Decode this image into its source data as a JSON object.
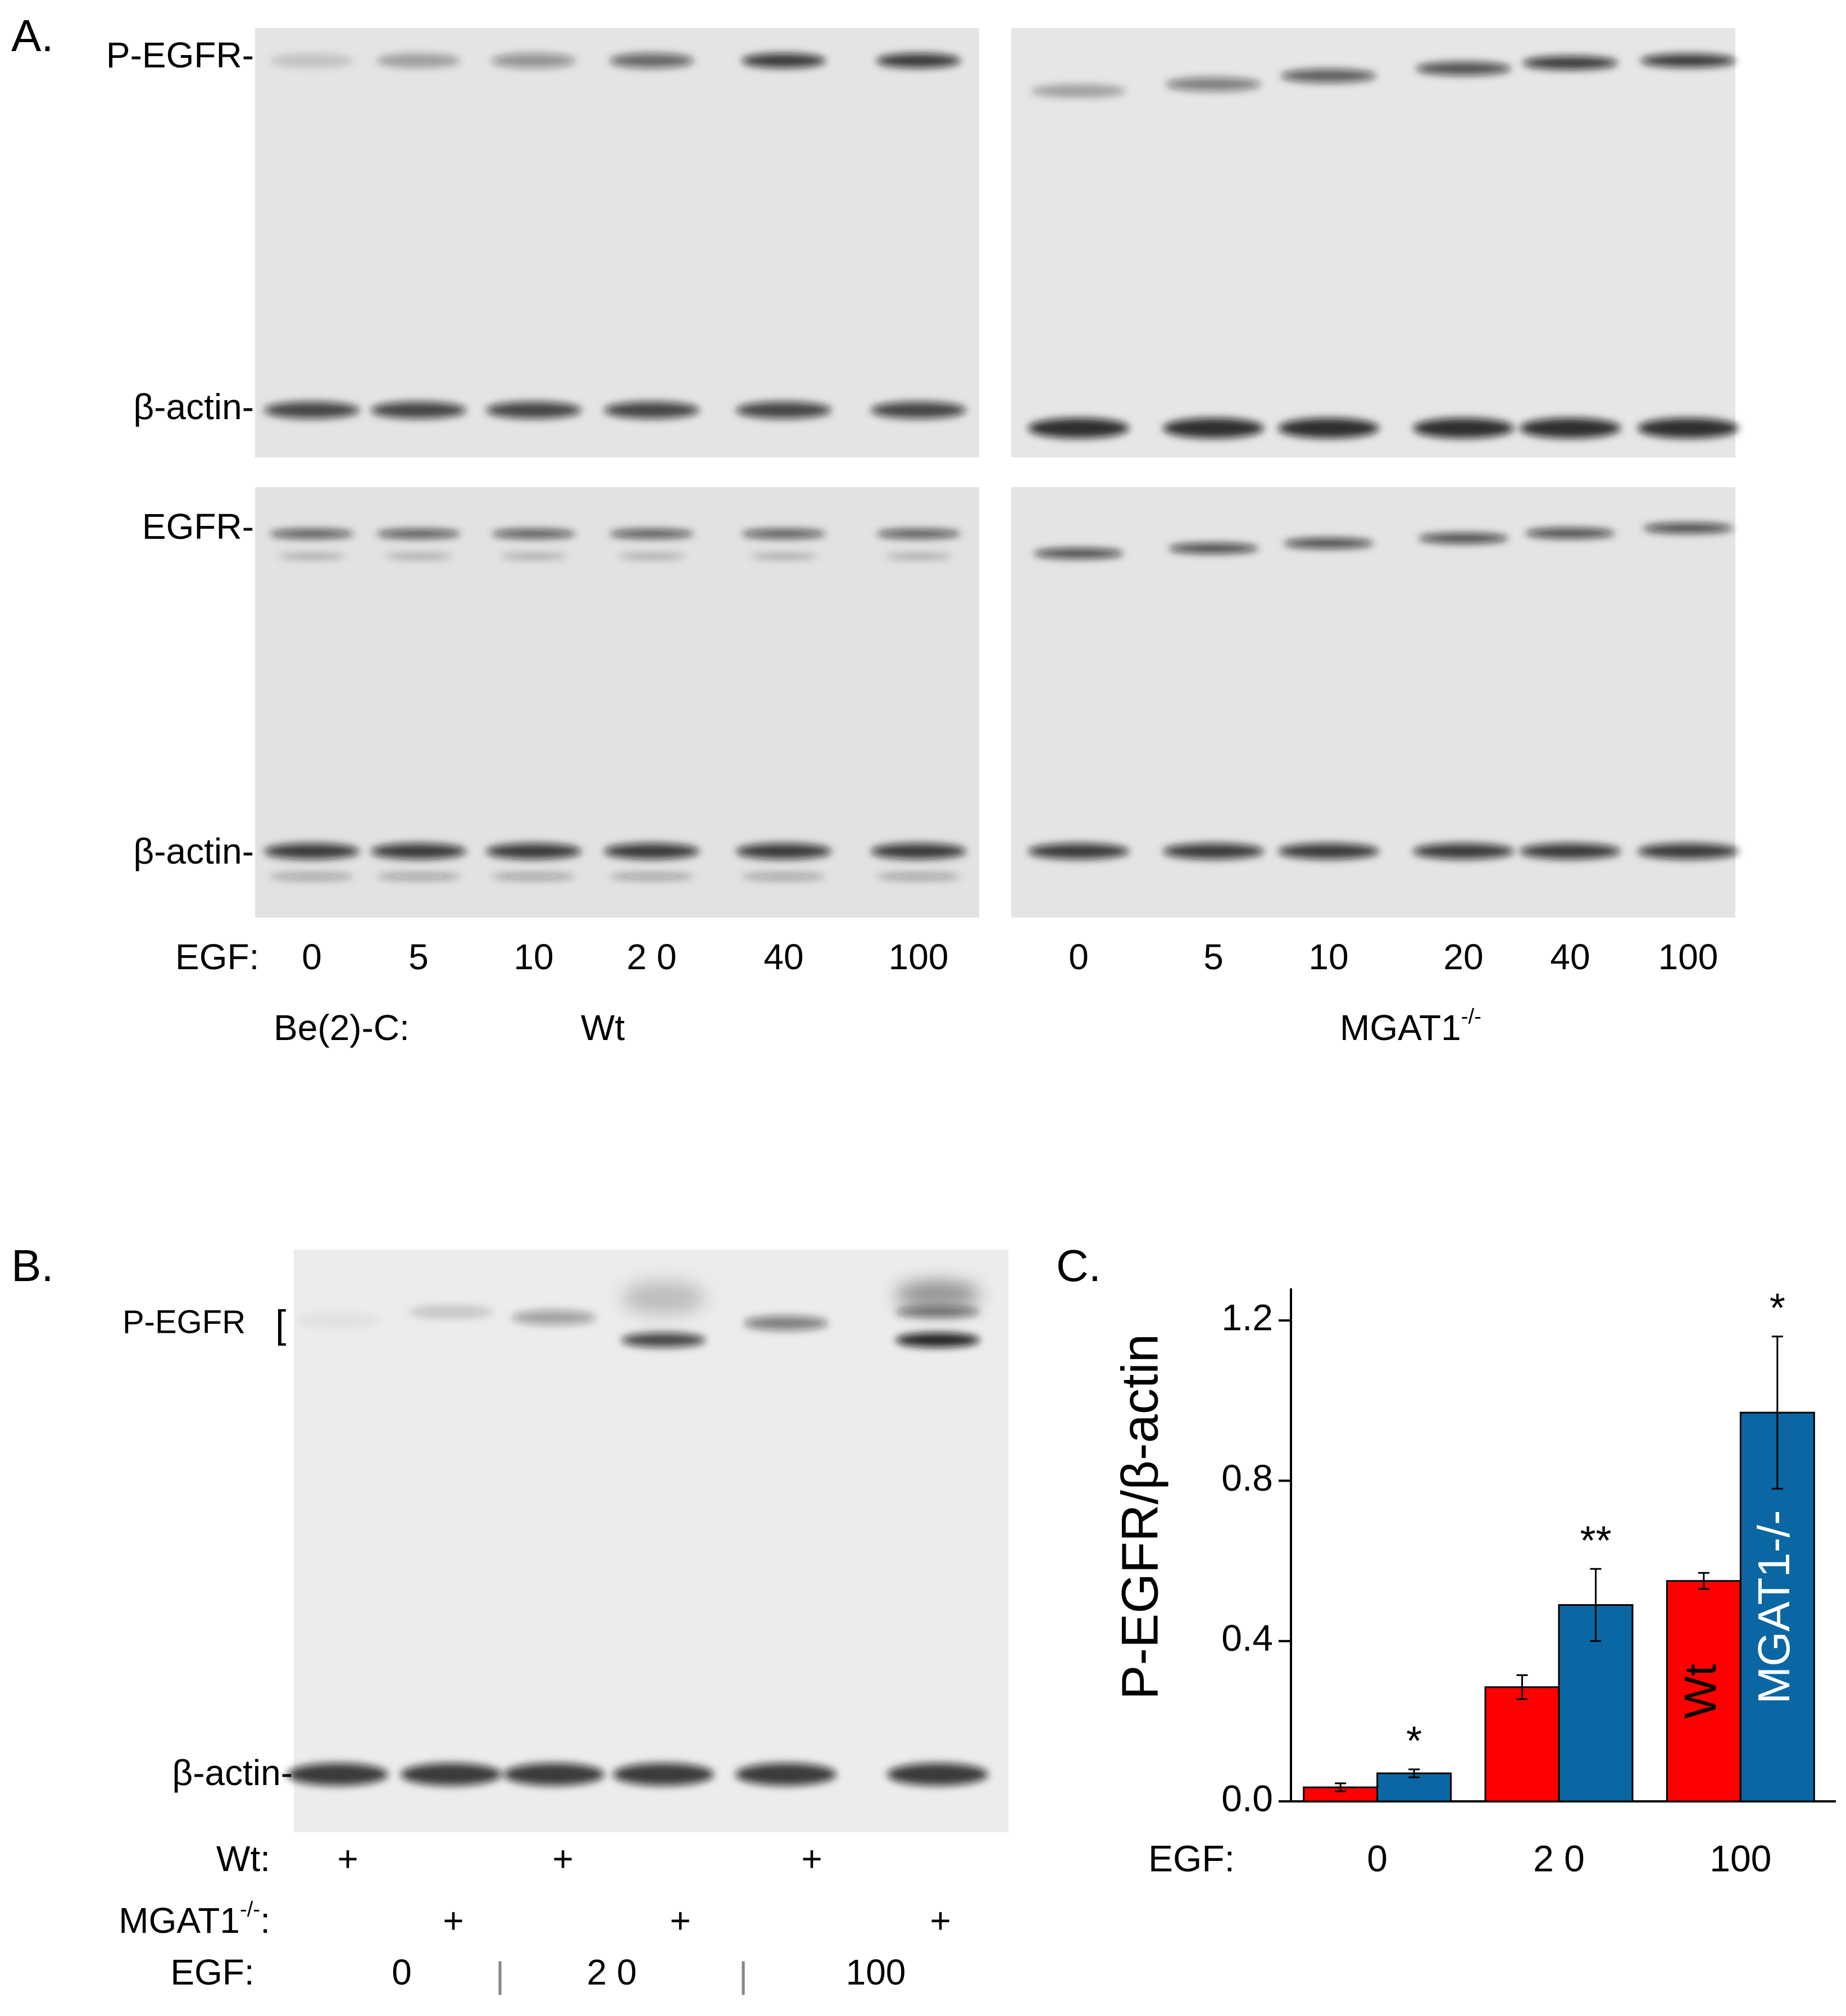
{
  "panel_a": {
    "label": "A.",
    "blot_labels": [
      "P-EGFR-",
      "β-actin-",
      "EGFR-",
      "β-actin-"
    ],
    "egf_label": "EGF:",
    "wt_doses": [
      "0",
      "5",
      "10",
      "2 0",
      "40",
      "100"
    ],
    "mgat1_doses": [
      "0",
      "5",
      "10",
      "20",
      "40",
      "100"
    ],
    "cell_line_label": "Be(2)-C:",
    "wt_label": "Wt",
    "mgat1_label": {
      "base": "MGAT1",
      "sup": "-/-"
    }
  },
  "panel_b": {
    "label": "B.",
    "p_egfr_label": "P-EGFR",
    "bracket": "[",
    "actin_label": "β-actin-",
    "wt_label": "Wt:",
    "mgat1_label": {
      "base": "MGAT1",
      "sup": "-/-",
      "colon": ":"
    },
    "wt_marks": [
      "+",
      "+",
      "+"
    ],
    "mgat1_marks": [
      "+",
      "+",
      "+"
    ],
    "egf_label": "EGF:",
    "doses": [
      "0",
      "2 0",
      "100"
    ],
    "separators": [
      "|",
      "|"
    ]
  },
  "chart_data": {
    "type": "bar",
    "panel_label": "C.",
    "x_label": "EGF:",
    "y_label": "P-EGFR/β-actin",
    "categories": [
      "0",
      "2 0",
      "100"
    ],
    "series": [
      {
        "name": "Wt",
        "color": "#ff0000",
        "values": [
          0.035,
          0.285,
          0.55
        ],
        "errors": [
          0.01,
          0.03,
          0.02
        ]
      },
      {
        "name": "MGAT1-/-",
        "color": "#0a67a3",
        "values": [
          0.07,
          0.49,
          0.97
        ],
        "errors": [
          0.01,
          0.09,
          0.19
        ]
      }
    ],
    "significance": [
      "*",
      "**",
      "*"
    ],
    "ylim": [
      0,
      1.28
    ],
    "yticks": [
      {
        "value": 0,
        "label": "0.0"
      },
      0.4,
      0.8,
      1.2
    ]
  }
}
